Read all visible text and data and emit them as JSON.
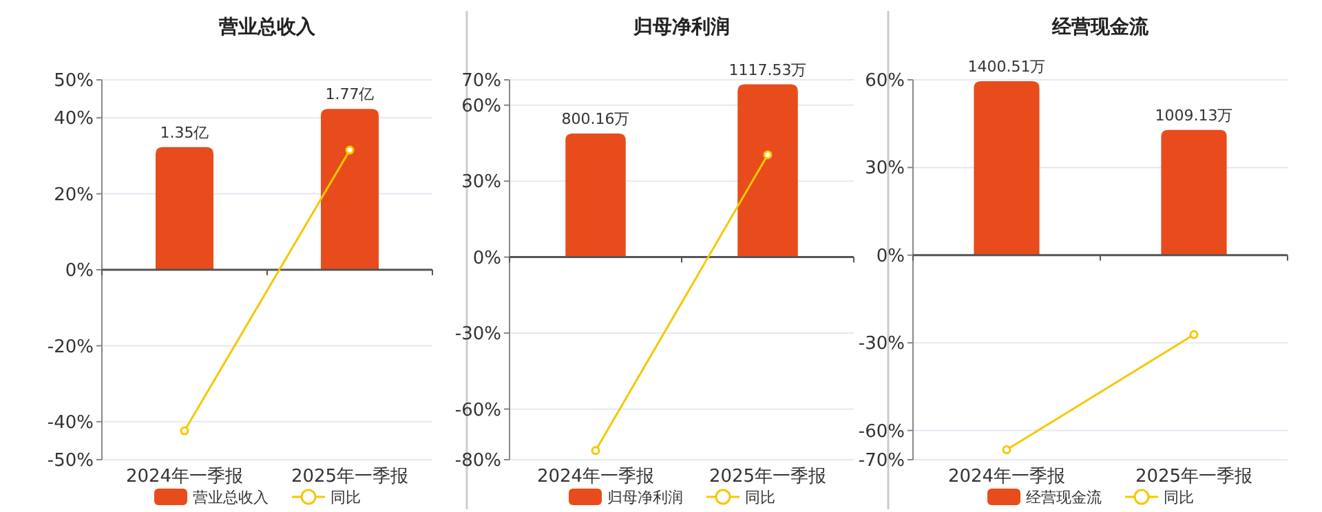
{
  "chart_data": [
    {
      "type": "bar",
      "title": "营业总收入",
      "categories": [
        "2024年一季报",
        "2025年一季报"
      ],
      "series": [
        {
          "name": "营业总收入",
          "axis": "y2",
          "color": "#e84c1c",
          "values": [
            1.35,
            1.77
          ],
          "value_labels": [
            "1.35亿",
            "1.77亿"
          ]
        },
        {
          "name": "同比",
          "type": "line",
          "color": "#f5c800",
          "values": [
            -42.4,
            31.5
          ],
          "marker": "circle"
        }
      ],
      "ylim": [
        -50,
        50
      ],
      "yticks": [
        {
          "value": -50,
          "label": "-50%"
        },
        {
          "value": -40,
          "label": "-40%"
        },
        {
          "value": -20,
          "label": "-20%"
        },
        {
          "value": 0,
          "label": "0%"
        },
        {
          "value": 20,
          "label": "20%"
        },
        {
          "value": 40,
          "label": "40%"
        },
        {
          "value": 50,
          "label": "50%"
        }
      ],
      "y2lim": [
        -2.09,
        2.09
      ],
      "grid": "y",
      "legend": "bottom"
    },
    {
      "type": "bar",
      "title": "归母净利润",
      "categories": [
        "2024年一季报",
        "2025年一季报"
      ],
      "series": [
        {
          "name": "归母净利润",
          "axis": "y2",
          "color": "#e84c1c",
          "values": [
            800.16,
            1117.53
          ],
          "value_labels": [
            "800.16万",
            "1117.53万"
          ]
        },
        {
          "name": "同比",
          "type": "line",
          "color": "#f5c800",
          "values": [
            -76.4,
            40.4
          ],
          "marker": "circle"
        }
      ],
      "ylim": [
        -80,
        70
      ],
      "yticks": [
        {
          "value": -80,
          "label": "-80%"
        },
        {
          "value": -60,
          "label": "-60%"
        },
        {
          "value": -30,
          "label": "-30%"
        },
        {
          "value": 0,
          "label": "0%"
        },
        {
          "value": 30,
          "label": "30%"
        },
        {
          "value": 60,
          "label": "60%"
        },
        {
          "value": 70,
          "label": "70%"
        }
      ],
      "y2lim": [
        -1311,
        1147
      ],
      "grid": "y",
      "legend": "bottom"
    },
    {
      "type": "bar",
      "title": "经营现金流",
      "categories": [
        "2024年一季报",
        "2025年一季报"
      ],
      "series": [
        {
          "name": "经营现金流",
          "axis": "y2",
          "color": "#e84c1c",
          "values": [
            1400.51,
            1009.13
          ],
          "value_labels": [
            "1400.51万",
            "1009.13万"
          ]
        },
        {
          "name": "同比",
          "type": "line",
          "color": "#f5c800",
          "values": [
            -66.6,
            -27.2
          ],
          "marker": "circle"
        }
      ],
      "ylim": [
        -70,
        60
      ],
      "yticks": [
        {
          "value": -70,
          "label": "-70%"
        },
        {
          "value": -60,
          "label": "-60%"
        },
        {
          "value": -30,
          "label": "-30%"
        },
        {
          "value": 0,
          "label": "0%"
        },
        {
          "value": 30,
          "label": "30%"
        },
        {
          "value": 60,
          "label": "60%"
        }
      ],
      "y2lim": [
        -1648,
        1412
      ],
      "grid": "y",
      "legend": "bottom"
    }
  ]
}
